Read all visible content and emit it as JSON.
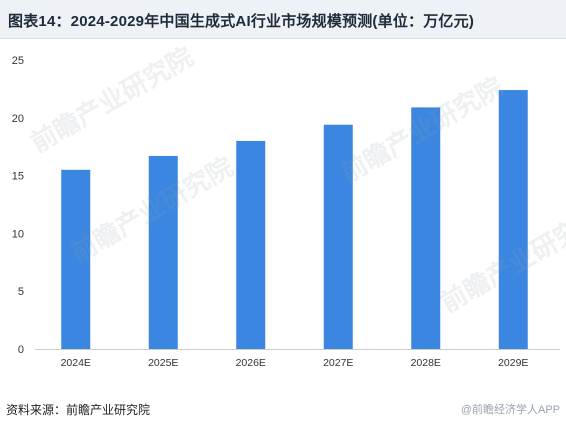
{
  "title": "图表14：2024-2029年中国生成式AI行业市场规模预测(单位：万亿元)",
  "source": "资料来源：前瞻产业研究院",
  "watermarks": [
    "前瞻产业研究院",
    "前瞻产业研究院",
    "前瞻产业研究院",
    "前瞻产业研究院"
  ],
  "corner_mark": "@前瞻经济学人APP",
  "colors": {
    "bar": "#3a86e0",
    "axis": "#cccccc",
    "title_bg": "#eef2f7"
  },
  "chart_data": {
    "type": "bar",
    "categories": [
      "2024E",
      "2025E",
      "2026E",
      "2027E",
      "2028E",
      "2029E"
    ],
    "values": [
      15.5,
      16.7,
      18.0,
      19.4,
      20.9,
      22.4
    ],
    "yticks": [
      0,
      5,
      10,
      15,
      20,
      25
    ],
    "ylim": [
      0,
      25
    ],
    "title": "",
    "xlabel": "",
    "ylabel": "",
    "grid": false,
    "legend": "none"
  }
}
